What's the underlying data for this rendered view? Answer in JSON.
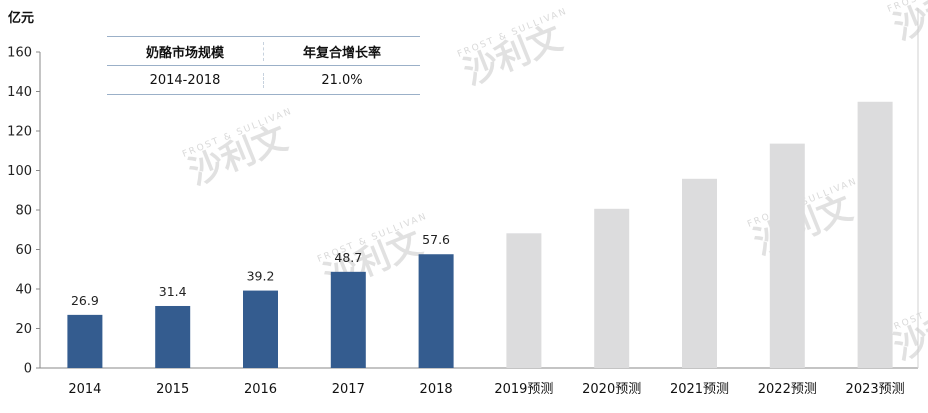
{
  "chart_data": {
    "type": "bar",
    "unit": "亿元",
    "categories": [
      "2014",
      "2015",
      "2016",
      "2017",
      "2018",
      "2019预测",
      "2020预测",
      "2021预测",
      "2022预测",
      "2023预测"
    ],
    "values": [
      26.9,
      31.4,
      39.2,
      48.7,
      57.6,
      68.2,
      80.6,
      95.8,
      113.6,
      134.8
    ],
    "data_labels": [
      "26.9",
      "31.4",
      "39.2",
      "48.7",
      "57.6",
      "",
      "",
      "",
      "",
      ""
    ],
    "forecast_from_index": 5,
    "ylim": [
      0,
      160
    ],
    "yticks": [
      0,
      20,
      40,
      60,
      80,
      100,
      120,
      140,
      160
    ],
    "grid": false,
    "colors": {
      "actual": "#345c8f",
      "forecast": "#dcdcdd"
    }
  },
  "cagr_table": {
    "headers": [
      "奶酪市场规模",
      "年复合增长率"
    ],
    "row": [
      "2014-2018",
      "21.0%"
    ]
  },
  "watermark": {
    "text": "沙利文",
    "small": "FROST & SULLIVAN"
  }
}
